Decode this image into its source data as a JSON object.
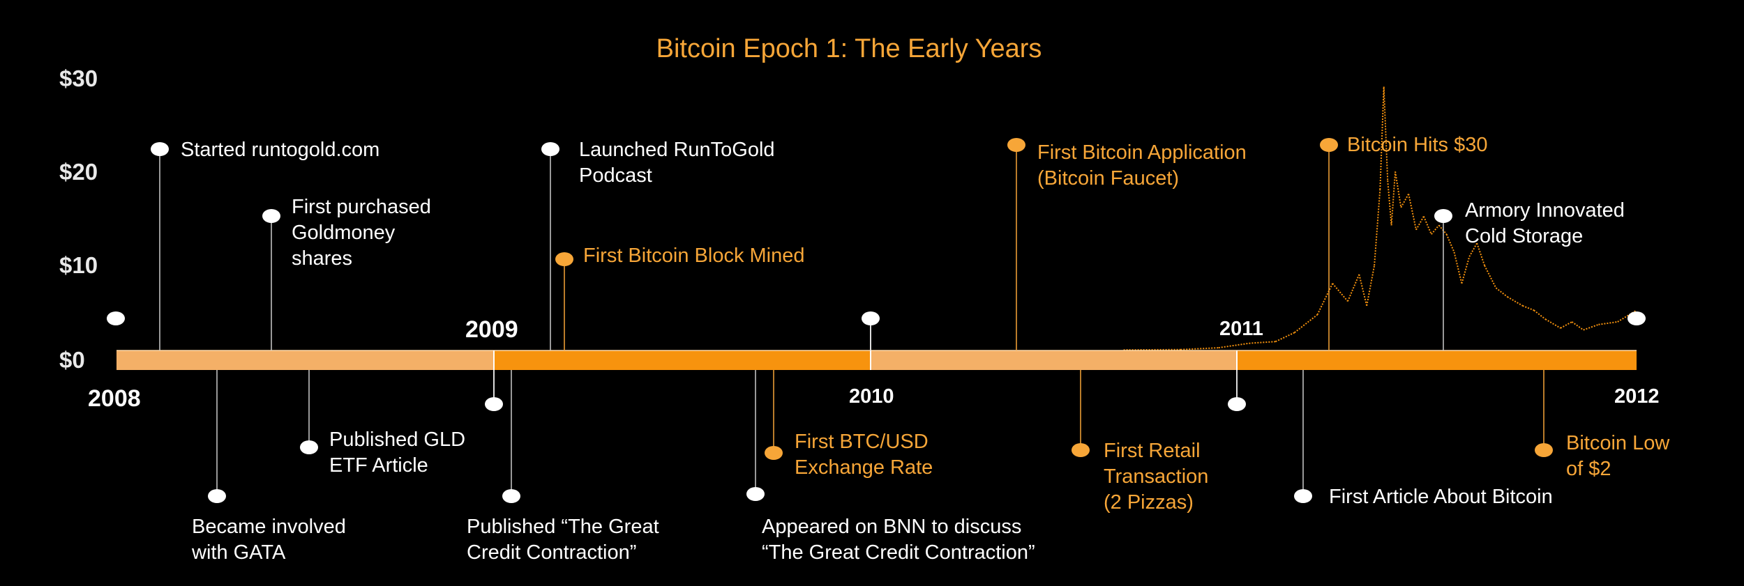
{
  "title": "Bitcoin Epoch 1: The Early Years",
  "y_axis": {
    "ticks": [
      "$0",
      "$10",
      "$20",
      "$30"
    ]
  },
  "timeline": {
    "years": [
      "2008",
      "2009",
      "2010",
      "2011",
      "2012"
    ],
    "bar_colors": {
      "light": "#f4b067",
      "dark": "#f7930e"
    }
  },
  "events": [
    {
      "id": "started-runtogold",
      "lines": [
        "Started runtogold.com"
      ],
      "color": "white"
    },
    {
      "id": "goldmoney-shares",
      "lines": [
        "First purchased",
        "Goldmoney",
        "shares"
      ],
      "color": "white"
    },
    {
      "id": "gata",
      "lines": [
        "Became involved",
        "with GATA"
      ],
      "color": "white"
    },
    {
      "id": "gld-etf-article",
      "lines": [
        "Published GLD",
        "ETF Article"
      ],
      "color": "white"
    },
    {
      "id": "great-credit-contraction",
      "lines": [
        "Published “The Great",
        "Credit Contraction”"
      ],
      "color": "white"
    },
    {
      "id": "runtogold-podcast",
      "lines": [
        "Launched RunToGold",
        "Podcast"
      ],
      "color": "white"
    },
    {
      "id": "first-block-mined",
      "lines": [
        "First Bitcoin Block Mined"
      ],
      "color": "orange"
    },
    {
      "id": "bnn-appearance",
      "lines": [
        "Appeared on BNN to discuss",
        "“The Great Credit Contraction”"
      ],
      "color": "white"
    },
    {
      "id": "btc-usd-rate",
      "lines": [
        "First BTC/USD",
        "Exchange Rate"
      ],
      "color": "orange"
    },
    {
      "id": "bitcoin-faucet",
      "lines": [
        "First Bitcoin Application",
        "(Bitcoin Faucet)"
      ],
      "color": "orange"
    },
    {
      "id": "pizza-transaction",
      "lines": [
        "First Retail",
        "Transaction",
        "(2 Pizzas)"
      ],
      "color": "orange"
    },
    {
      "id": "first-article",
      "lines": [
        "First Article About Bitcoin"
      ],
      "color": "white"
    },
    {
      "id": "bitcoin-hits-30",
      "lines": [
        "Bitcoin Hits $30"
      ],
      "color": "orange"
    },
    {
      "id": "armory-cold-storage",
      "lines": [
        "Armory Innovated",
        "Cold Storage"
      ],
      "color": "white"
    },
    {
      "id": "bitcoin-low",
      "lines": [
        "Bitcoin Low",
        "of $2"
      ],
      "color": "orange"
    }
  ],
  "colors": {
    "accent": "#f7a638",
    "marker_white": "#ffffff",
    "price_line": "#f7930e"
  },
  "chart_data": {
    "type": "line",
    "ylim": [
      0,
      30
    ],
    "x_unit": "year",
    "series": [
      {
        "x": [
          2010.65,
          2010.8,
          2010.9,
          2010.98,
          2011.05,
          2011.1,
          2011.16,
          2011.2,
          2011.24,
          2011.27,
          2011.29,
          2011.31,
          2011.325,
          2011.335,
          2011.345,
          2011.355,
          2011.365,
          2011.38,
          2011.4,
          2011.42,
          2011.44,
          2011.46,
          2011.48,
          2011.5,
          2011.52,
          2011.54,
          2011.56,
          2011.58,
          2011.6,
          2011.63,
          2011.66,
          2011.7,
          2011.73,
          2011.76,
          2011.8,
          2011.83,
          2011.86,
          2011.9,
          2011.95,
          2012.0
        ],
        "y": [
          0.06,
          0.1,
          0.3,
          0.8,
          1.0,
          2.0,
          4.0,
          7.5,
          5.5,
          8.5,
          5.0,
          9.5,
          18.0,
          29.5,
          19.0,
          14.0,
          20.0,
          16.0,
          17.5,
          13.5,
          15.0,
          13.0,
          14.0,
          13.0,
          11.0,
          7.5,
          10.5,
          12.0,
          9.5,
          7.0,
          6.0,
          5.0,
          4.5,
          3.5,
          2.5,
          3.2,
          2.3,
          2.9,
          3.2,
          4.5
        ]
      }
    ]
  }
}
